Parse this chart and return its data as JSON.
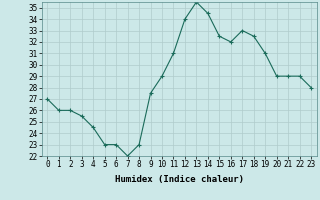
{
  "x": [
    0,
    1,
    2,
    3,
    4,
    5,
    6,
    7,
    8,
    9,
    10,
    11,
    12,
    13,
    14,
    15,
    16,
    17,
    18,
    19,
    20,
    21,
    22,
    23
  ],
  "y": [
    27,
    26,
    26,
    25.5,
    24.5,
    23,
    23,
    22,
    23,
    27.5,
    29,
    31,
    34,
    35.5,
    34.5,
    32.5,
    32,
    33,
    32.5,
    31,
    29,
    29,
    29,
    28
  ],
  "title": "",
  "xlabel": "Humidex (Indice chaleur)",
  "ylabel": "",
  "ylim": [
    22,
    35.5
  ],
  "xlim": [
    -0.5,
    23.5
  ],
  "yticks": [
    22,
    23,
    24,
    25,
    26,
    27,
    28,
    29,
    30,
    31,
    32,
    33,
    34,
    35
  ],
  "xticks": [
    0,
    1,
    2,
    3,
    4,
    5,
    6,
    7,
    8,
    9,
    10,
    11,
    12,
    13,
    14,
    15,
    16,
    17,
    18,
    19,
    20,
    21,
    22,
    23
  ],
  "line_color": "#1a6b5a",
  "marker": "+",
  "bg_color": "#cce8e8",
  "grid_color": "#b0cccc",
  "label_fontsize": 6.5,
  "tick_fontsize": 5.5
}
